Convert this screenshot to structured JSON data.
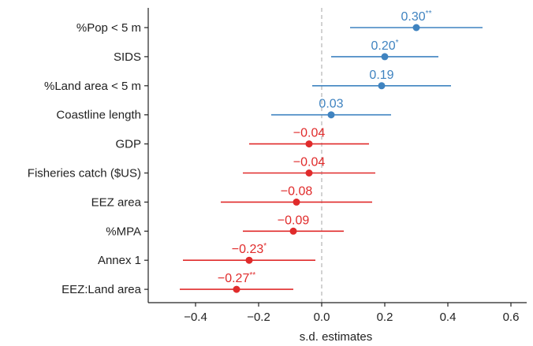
{
  "chart_data": {
    "type": "forest",
    "xlabel": "s.d. estimates",
    "xlim": [
      -0.55,
      0.65
    ],
    "xticks": [
      -0.4,
      -0.2,
      0.0,
      0.2,
      0.4,
      0.6
    ],
    "xtick_labels": [
      "−0.4",
      "−0.2",
      "0.0",
      "0.2",
      "0.4",
      "0.6"
    ],
    "reference_line": 0,
    "colors": {
      "positive": "#3f83c0",
      "negative": "#e02b2b"
    },
    "rows": [
      {
        "label": "%Pop < 5 m",
        "estimate": 0.3,
        "ci": [
          0.09,
          0.51
        ],
        "value_label": "0.30",
        "sig": "**"
      },
      {
        "label": "SIDS",
        "estimate": 0.2,
        "ci": [
          0.03,
          0.37
        ],
        "value_label": "0.20",
        "sig": "*"
      },
      {
        "label": "%Land area < 5 m",
        "estimate": 0.19,
        "ci": [
          -0.03,
          0.41
        ],
        "value_label": "0.19",
        "sig": ""
      },
      {
        "label": "Coastline length",
        "estimate": 0.03,
        "ci": [
          -0.16,
          0.22
        ],
        "value_label": "0.03",
        "sig": ""
      },
      {
        "label": "GDP",
        "estimate": -0.04,
        "ci": [
          -0.23,
          0.15
        ],
        "value_label": "−0.04",
        "sig": ""
      },
      {
        "label": "Fisheries catch ($US)",
        "estimate": -0.04,
        "ci": [
          -0.25,
          0.17
        ],
        "value_label": "−0.04",
        "sig": ""
      },
      {
        "label": "EEZ area",
        "estimate": -0.08,
        "ci": [
          -0.32,
          0.16
        ],
        "value_label": "−0.08",
        "sig": ""
      },
      {
        "label": "%MPA",
        "estimate": -0.09,
        "ci": [
          -0.25,
          0.07
        ],
        "value_label": "−0.09",
        "sig": ""
      },
      {
        "label": "Annex 1",
        "estimate": -0.23,
        "ci": [
          -0.44,
          -0.02
        ],
        "value_label": "−0.23",
        "sig": "*"
      },
      {
        "label": "EEZ:Land area",
        "estimate": -0.27,
        "ci": [
          -0.45,
          -0.09
        ],
        "value_label": "−0.27",
        "sig": "**"
      }
    ]
  }
}
